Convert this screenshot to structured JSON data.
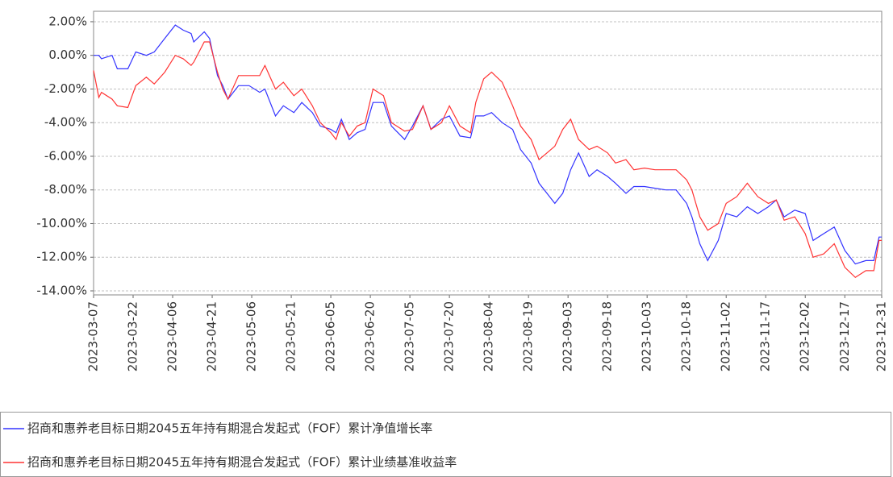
{
  "chart_data": {
    "type": "line",
    "x": [
      "2023-03-07",
      "2023-03-09",
      "2023-03-10",
      "2023-03-14",
      "2023-03-16",
      "2023-03-20",
      "2023-03-23",
      "2023-03-27",
      "2023-03-30",
      "2023-04-03",
      "2023-04-07",
      "2023-04-10",
      "2023-04-13",
      "2023-04-14",
      "2023-04-18",
      "2023-04-20",
      "2023-04-23",
      "2023-04-25",
      "2023-04-27",
      "2023-05-01",
      "2023-05-05",
      "2023-05-09",
      "2023-05-11",
      "2023-05-15",
      "2023-05-18",
      "2023-05-22",
      "2023-05-25",
      "2023-05-29",
      "2023-06-01",
      "2023-06-05",
      "2023-06-07",
      "2023-06-09",
      "2023-06-12",
      "2023-06-15",
      "2023-06-18",
      "2023-06-21",
      "2023-06-25",
      "2023-06-28",
      "2023-07-03",
      "2023-07-06",
      "2023-07-10",
      "2023-07-13",
      "2023-07-17",
      "2023-07-20",
      "2023-07-24",
      "2023-07-28",
      "2023-07-30",
      "2023-08-02",
      "2023-08-05",
      "2023-08-09",
      "2023-08-13",
      "2023-08-16",
      "2023-08-20",
      "2023-08-23",
      "2023-08-26",
      "2023-08-29",
      "2023-09-01",
      "2023-09-04",
      "2023-09-07",
      "2023-09-11",
      "2023-09-14",
      "2023-09-18",
      "2023-09-21",
      "2023-09-25",
      "2023-09-28",
      "2023-10-02",
      "2023-10-06",
      "2023-10-10",
      "2023-10-14",
      "2023-10-18",
      "2023-10-20",
      "2023-10-23",
      "2023-10-26",
      "2023-10-30",
      "2023-11-02",
      "2023-11-06",
      "2023-11-10",
      "2023-11-14",
      "2023-11-18",
      "2023-11-21",
      "2023-11-24",
      "2023-11-28",
      "2023-12-02",
      "2023-12-05",
      "2023-12-09",
      "2023-12-13",
      "2023-12-17",
      "2023-12-21",
      "2023-12-25",
      "2023-12-28",
      "2023-12-30",
      "2023-12-31"
    ],
    "series": [
      {
        "name": "招商和惠养老目标日期2045五年持有期混合发起式（FOF）累计净值增长率",
        "color": "#3333ff",
        "values": [
          0.0,
          0.0,
          -0.2,
          0.0,
          -0.8,
          -0.8,
          0.2,
          0.0,
          0.2,
          1.0,
          1.8,
          1.5,
          1.3,
          0.8,
          1.4,
          1.0,
          -1.2,
          -1.8,
          -2.6,
          -1.8,
          -1.8,
          -2.2,
          -2.0,
          -3.6,
          -3.0,
          -3.4,
          -2.8,
          -3.4,
          -4.2,
          -4.4,
          -4.6,
          -3.8,
          -5.0,
          -4.6,
          -4.4,
          -2.8,
          -2.8,
          -4.2,
          -5.0,
          -4.2,
          -3.0,
          -4.4,
          -3.8,
          -3.6,
          -4.8,
          -4.9,
          -3.6,
          -3.6,
          -3.4,
          -4.0,
          -4.4,
          -5.6,
          -6.4,
          -7.6,
          -8.2,
          -8.8,
          -8.2,
          -6.8,
          -5.8,
          -7.2,
          -6.8,
          -7.2,
          -7.6,
          -8.2,
          -7.8,
          -7.8,
          -7.9,
          -8.0,
          -8.0,
          -8.8,
          -9.6,
          -11.2,
          -12.2,
          -11.0,
          -9.4,
          -9.6,
          -9.0,
          -9.4,
          -9.0,
          -8.6,
          -9.6,
          -9.2,
          -9.4,
          -11.0,
          -10.6,
          -10.2,
          -11.6,
          -12.4,
          -12.2,
          -12.2,
          -10.8,
          -10.8
        ]
      },
      {
        "name": "招商和惠养老目标日期2045五年持有期混合发起式（FOF）累计业绩基准收益率",
        "color": "#ff3333",
        "values": [
          -0.9,
          -2.5,
          -2.2,
          -2.6,
          -3.0,
          -3.1,
          -1.8,
          -1.3,
          -1.7,
          -1.0,
          0.0,
          -0.2,
          -0.6,
          -0.4,
          0.8,
          0.8,
          -1.0,
          -2.0,
          -2.6,
          -1.2,
          -1.2,
          -1.2,
          -0.6,
          -2.0,
          -1.6,
          -2.4,
          -2.0,
          -3.0,
          -4.0,
          -4.6,
          -5.0,
          -4.0,
          -4.8,
          -4.2,
          -4.0,
          -2.0,
          -2.4,
          -4.0,
          -4.5,
          -4.4,
          -3.0,
          -4.4,
          -4.0,
          -3.0,
          -4.2,
          -4.6,
          -2.8,
          -1.4,
          -1.0,
          -1.6,
          -3.0,
          -4.2,
          -5.0,
          -6.2,
          -5.8,
          -5.4,
          -4.4,
          -3.8,
          -5.0,
          -5.6,
          -5.4,
          -5.8,
          -6.4,
          -6.2,
          -6.8,
          -6.7,
          -6.8,
          -6.8,
          -6.8,
          -7.4,
          -8.0,
          -9.6,
          -10.4,
          -10.0,
          -8.8,
          -8.4,
          -7.6,
          -8.4,
          -8.8,
          -8.6,
          -9.8,
          -9.6,
          -10.6,
          -12.0,
          -11.8,
          -11.2,
          -12.6,
          -13.2,
          -12.8,
          -12.8,
          -11.0,
          -11.0
        ]
      }
    ],
    "xlim": [
      "2023-03-07",
      "2023-12-31"
    ],
    "xticks": [
      "2023-03-07",
      "2023-03-22",
      "2023-04-06",
      "2023-04-21",
      "2023-05-06",
      "2023-05-21",
      "2023-06-05",
      "2023-06-20",
      "2023-07-05",
      "2023-07-20",
      "2023-08-04",
      "2023-08-19",
      "2023-09-03",
      "2023-09-18",
      "2023-10-03",
      "2023-10-18",
      "2023-11-02",
      "2023-11-17",
      "2023-12-02",
      "2023-12-17",
      "2023-12-31"
    ],
    "ylim": [
      -14.24,
      2.62
    ],
    "yticks": [
      {
        "value": 2,
        "label": "2.00%"
      },
      {
        "value": 0,
        "label": "0.00%"
      },
      {
        "value": -2,
        "label": "-2.00%"
      },
      {
        "value": -4,
        "label": "-4.00%"
      },
      {
        "value": -6,
        "label": "-6.00%"
      },
      {
        "value": -8,
        "label": "-8.00%"
      },
      {
        "value": -10,
        "label": "-10.00%"
      },
      {
        "value": -12,
        "label": "-12.00%"
      },
      {
        "value": -14,
        "label": "-14.00%"
      }
    ],
    "grid": true
  }
}
